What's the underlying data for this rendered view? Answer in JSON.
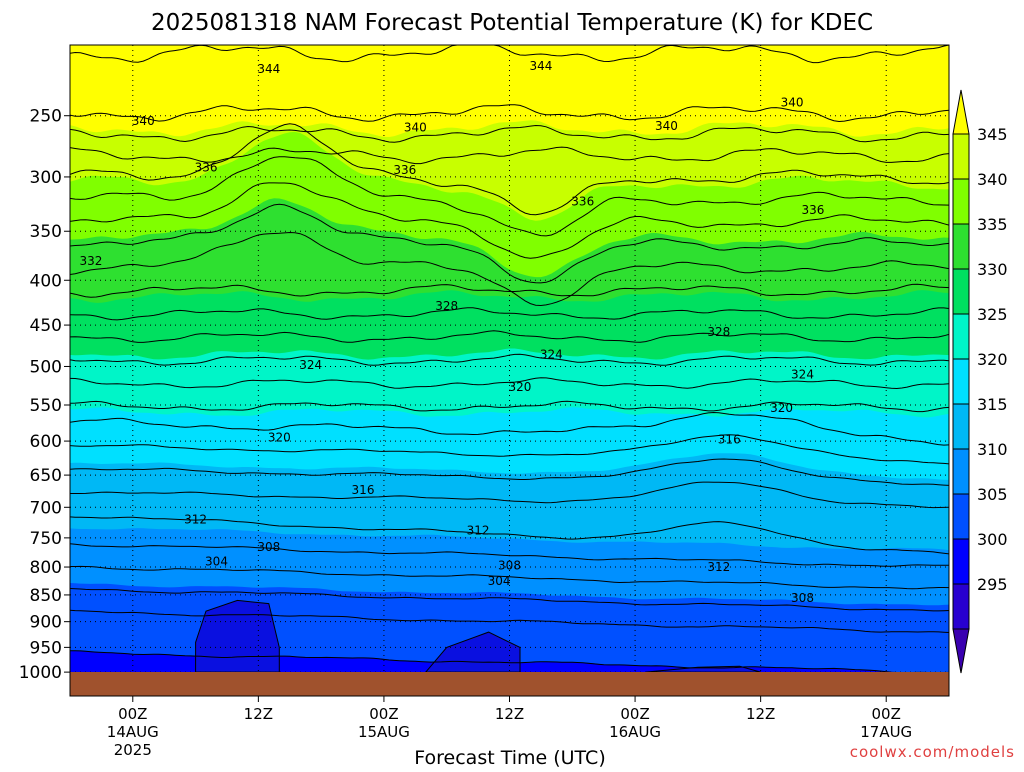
{
  "chart_data": {
    "type": "contour",
    "title": "2025081318 NAM Forecast Potential Temperature (K) for KDEC",
    "xlabel": "Forecast Time (UTC)",
    "watermark": "coolwx.com/models",
    "x_ticks": [
      {
        "label": "00Z",
        "date": "14AUG",
        "year": "2025",
        "hour": 6
      },
      {
        "label": "12Z",
        "date": "",
        "year": "",
        "hour": 18
      },
      {
        "label": "00Z",
        "date": "15AUG",
        "year": "",
        "hour": 30
      },
      {
        "label": "12Z",
        "date": "",
        "year": "",
        "hour": 42
      },
      {
        "label": "00Z",
        "date": "16AUG",
        "year": "",
        "hour": 54
      },
      {
        "label": "12Z",
        "date": "",
        "year": "",
        "hour": 66
      },
      {
        "label": "00Z",
        "date": "17AUG",
        "year": "",
        "hour": 78
      }
    ],
    "xlim": [
      0,
      84
    ],
    "y_ticks": [
      {
        "label": "250",
        "p": 250
      },
      {
        "label": "300",
        "p": 300
      },
      {
        "label": "350",
        "p": 350
      },
      {
        "label": "400",
        "p": 400
      },
      {
        "label": "450",
        "p": 450
      },
      {
        "label": "500",
        "p": 500
      },
      {
        "label": "550",
        "p": 550
      },
      {
        "label": "600",
        "p": 600
      },
      {
        "label": "650",
        "p": 650
      },
      {
        "label": "700",
        "p": 700
      },
      {
        "label": "750",
        "p": 750
      },
      {
        "label": "800",
        "p": 800
      },
      {
        "label": "850",
        "p": 850
      },
      {
        "label": "900",
        "p": 900
      },
      {
        "label": "950",
        "p": 950
      },
      {
        "label": "1000",
        "p": 1000
      }
    ],
    "ylim": [
      200,
      1050
    ],
    "colorbar": {
      "labels": [
        "345",
        "340",
        "335",
        "330",
        "325",
        "320",
        "315",
        "310",
        "305",
        "300",
        "295"
      ],
      "colors": [
        "#ffff00",
        "#c8ff00",
        "#80ff00",
        "#2ee030",
        "#00e060",
        "#00f5c8",
        "#00e0ff",
        "#00b8f5",
        "#0090ff",
        "#0050ff",
        "#0000ff",
        "#2800d0",
        "#3a00b0"
      ]
    },
    "bands": [
      {
        "theta": 345,
        "color": "#ffff00"
      },
      {
        "theta": 340,
        "color": "#c8ff00"
      },
      {
        "theta": 335,
        "color": "#80ff00"
      },
      {
        "theta": 330,
        "color": "#2ee030"
      },
      {
        "theta": 325,
        "color": "#00e060"
      },
      {
        "theta": 320,
        "color": "#00f5c8"
      },
      {
        "theta": 315,
        "color": "#00e0ff"
      },
      {
        "theta": 310,
        "color": "#00b8f5"
      },
      {
        "theta": 305,
        "color": "#0090ff"
      },
      {
        "theta": 300,
        "color": "#0050ff"
      },
      {
        "theta": 295,
        "color": "#0000ff"
      }
    ],
    "contour_labels": [
      {
        "text": "344",
        "hour": 19,
        "p": 216
      },
      {
        "text": "344",
        "hour": 45,
        "p": 214
      },
      {
        "text": "340",
        "hour": 7,
        "p": 254
      },
      {
        "text": "340",
        "hour": 33,
        "p": 259
      },
      {
        "text": "340",
        "hour": 57,
        "p": 258
      },
      {
        "text": "340",
        "hour": 69,
        "p": 240
      },
      {
        "text": "336",
        "hour": 13,
        "p": 292
      },
      {
        "text": "336",
        "hour": 32,
        "p": 294
      },
      {
        "text": "336",
        "hour": 49,
        "p": 322
      },
      {
        "text": "336",
        "hour": 71,
        "p": 330
      },
      {
        "text": "332",
        "hour": 2,
        "p": 380
      },
      {
        "text": "328",
        "hour": 36,
        "p": 428
      },
      {
        "text": "328",
        "hour": 62,
        "p": 458
      },
      {
        "text": "324",
        "hour": 23,
        "p": 498
      },
      {
        "text": "324",
        "hour": 46,
        "p": 485
      },
      {
        "text": "324",
        "hour": 70,
        "p": 510
      },
      {
        "text": "320",
        "hour": 43,
        "p": 526
      },
      {
        "text": "320",
        "hour": 68,
        "p": 554
      },
      {
        "text": "320",
        "hour": 20,
        "p": 595
      },
      {
        "text": "316",
        "hour": 63,
        "p": 598
      },
      {
        "text": "316",
        "hour": 28,
        "p": 673
      },
      {
        "text": "312",
        "hour": 12,
        "p": 720
      },
      {
        "text": "312",
        "hour": 39,
        "p": 738
      },
      {
        "text": "312",
        "hour": 62,
        "p": 800
      },
      {
        "text": "308",
        "hour": 19,
        "p": 765
      },
      {
        "text": "308",
        "hour": 42,
        "p": 797
      },
      {
        "text": "308",
        "hour": 70,
        "p": 856
      },
      {
        "text": "304",
        "hour": 14,
        "p": 790
      },
      {
        "text": "304",
        "hour": 41,
        "p": 825
      }
    ]
  }
}
